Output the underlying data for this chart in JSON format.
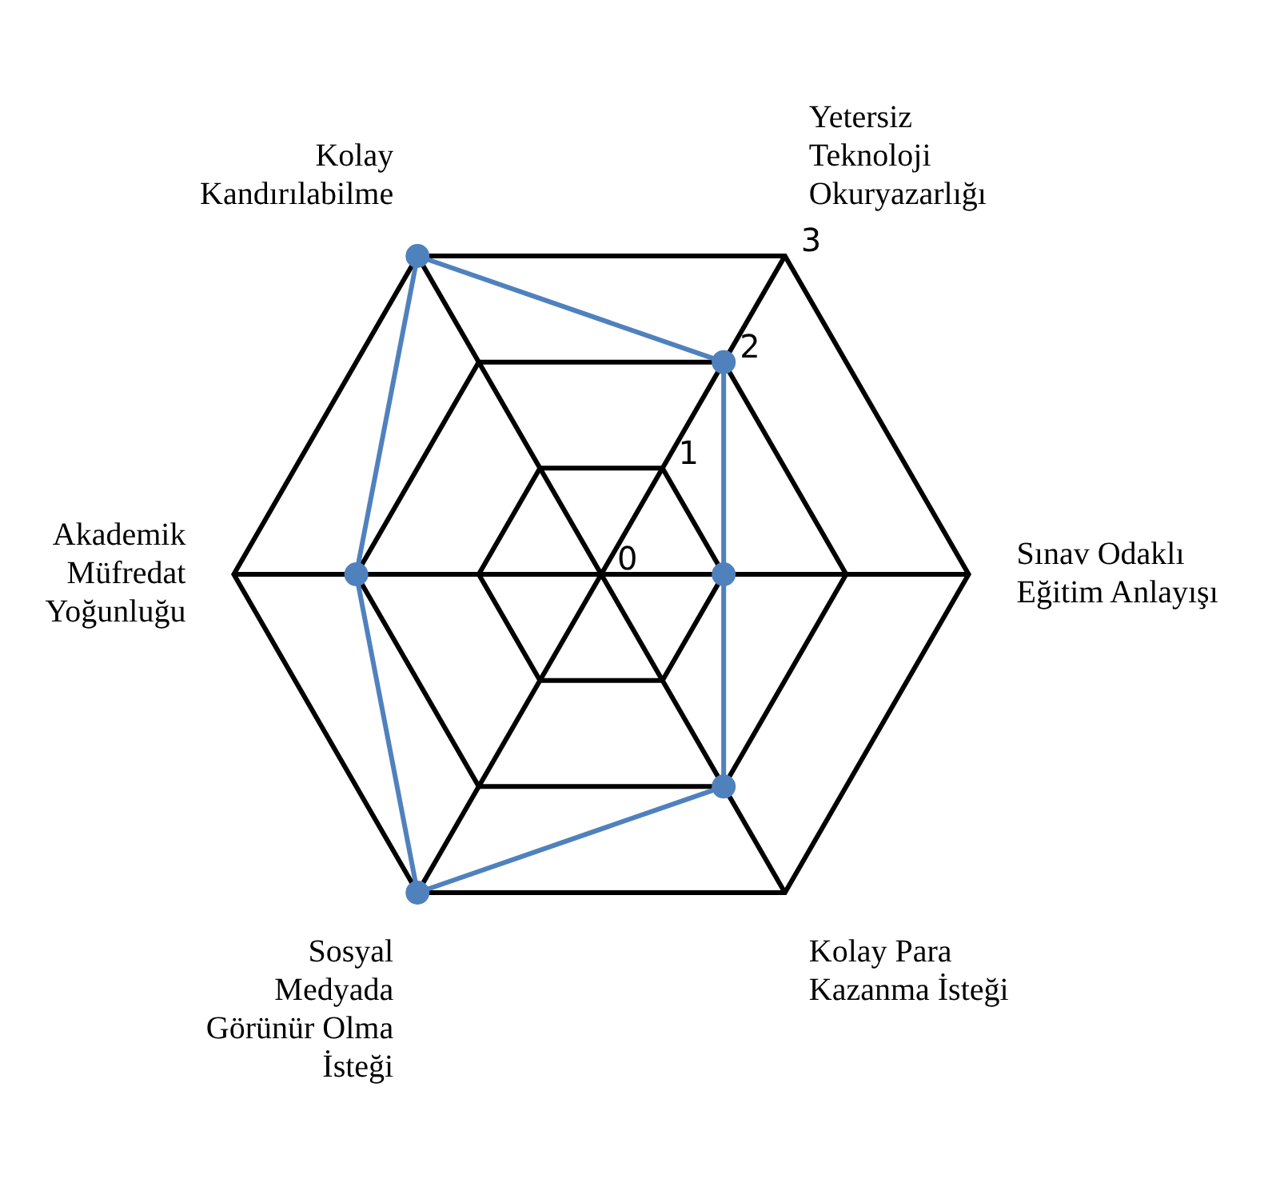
{
  "chart_data": {
    "type": "radar",
    "categories": [
      "Kolay Kandırılabilme",
      "Yetersiz Teknoloji Okuryazarlığı",
      "Sınav Odaklı Eğitim Anlayışı",
      "Kolay Para Kazanma İsteği",
      "Sosyal Medyada Görünür Olma İsteği",
      "Akademik Müfredat Yoğunluğu"
    ],
    "series": [
      {
        "color": "#4f81bd",
        "values": [
          3,
          2,
          1,
          2,
          3,
          2
        ]
      }
    ],
    "ylim": [
      0,
      3
    ],
    "yticks": [
      0,
      1,
      2,
      3
    ],
    "grid": true,
    "legend": false,
    "marker": "circle",
    "line_style": "solid"
  }
}
